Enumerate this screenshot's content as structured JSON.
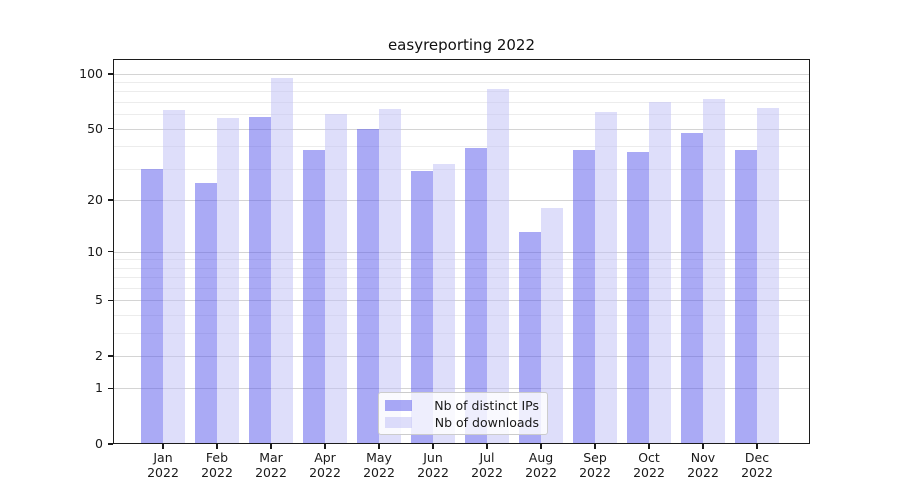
{
  "title": "easyreporting 2022",
  "chart_data": {
    "type": "bar",
    "title": "easyreporting 2022",
    "categories": [
      "Jan 2022",
      "Feb 2022",
      "Mar 2022",
      "Apr 2022",
      "May 2022",
      "Jun 2022",
      "Jul 2022",
      "Aug 2022",
      "Sep 2022",
      "Oct 2022",
      "Nov 2022",
      "Dec 2022"
    ],
    "series": [
      {
        "name": "Nb of distinct IPs",
        "color": "rgba(85,85,235,0.5)",
        "solid_color": "#a9a9f3",
        "values": [
          30,
          25,
          58,
          38,
          50,
          29,
          39,
          13,
          38,
          37,
          47,
          38
        ]
      },
      {
        "name": "Nb of downloads",
        "color": "rgba(190,190,245,0.5)",
        "solid_color": "#dcdcf9",
        "values": [
          63,
          57,
          95,
          60,
          64,
          32,
          83,
          18,
          62,
          70,
          73,
          65
        ]
      }
    ],
    "y_axis": {
      "scale": "log1p",
      "ticks": [
        0,
        1,
        2,
        5,
        10,
        20,
        50,
        100
      ],
      "minor_ticks": [
        3,
        4,
        6,
        7,
        8,
        9,
        30,
        40,
        60,
        70,
        80,
        90
      ],
      "range": [
        0,
        120
      ],
      "label": ""
    },
    "x_axis": {
      "label": ""
    },
    "legend": {
      "position": "bottom-center"
    },
    "grid": "horizontal-major-and-minor",
    "background_color": "#ffffff"
  }
}
